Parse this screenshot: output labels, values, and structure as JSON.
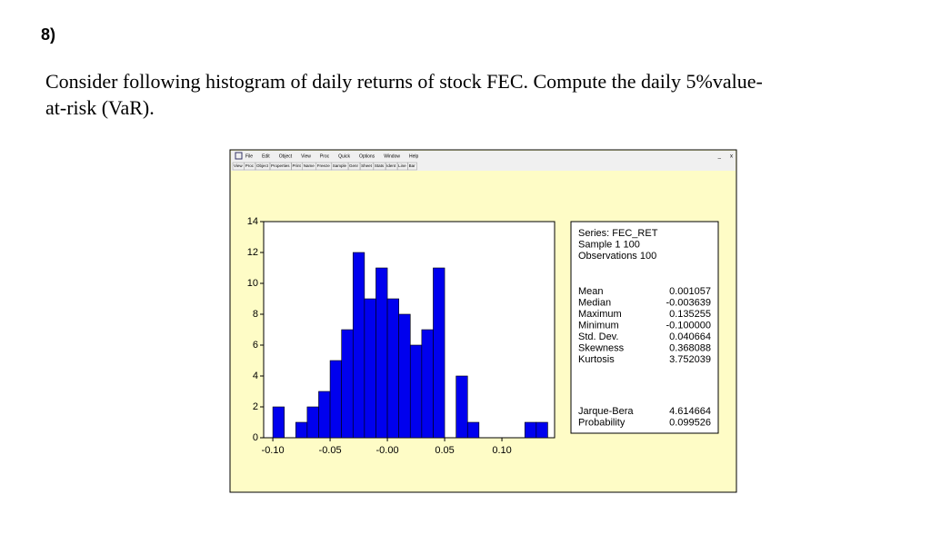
{
  "header": {
    "number": "8)"
  },
  "question": {
    "lines": [
      "Consider following histogram of daily returns of stock FEC. Compute the daily 5%value-",
      "at-risk (VaR)."
    ]
  },
  "window": {
    "menu": [
      "File",
      "Edit",
      "Object",
      "View",
      "Proc",
      "Quick",
      "Options",
      "Window",
      "Help"
    ],
    "toolbar": [
      "View",
      "Proc",
      "Object",
      "Properties",
      "Print",
      "Name",
      "Freeze",
      "Sample",
      "Genr",
      "Sheet",
      "Stats",
      "Ident",
      "Line",
      "Bar"
    ],
    "controls": "_      x"
  },
  "chart_data": {
    "type": "histogram",
    "bins": [
      -0.1,
      -0.09,
      -0.08,
      -0.07,
      -0.06,
      -0.05,
      -0.04,
      -0.03,
      -0.02,
      -0.01,
      0.0,
      0.01,
      0.02,
      0.03,
      0.04,
      0.05,
      0.06,
      0.07,
      0.08,
      0.09,
      0.1,
      0.11,
      0.12,
      0.13,
      0.14
    ],
    "values": [
      2,
      0,
      1,
      2,
      3,
      5,
      7,
      12,
      9,
      11,
      9,
      8,
      6,
      7,
      11,
      0,
      4,
      1,
      0,
      0,
      0,
      0,
      1,
      1
    ],
    "color": "#0000ee",
    "xlim": [
      -0.108,
      0.146
    ],
    "xticks": [
      {
        "value": -0.1,
        "label": "-0.10"
      },
      {
        "value": -0.05,
        "label": "-0.05"
      },
      {
        "value": 0,
        "label": "-0.00"
      },
      {
        "value": 0.05,
        "label": "0.05"
      },
      {
        "value": 0.1,
        "label": "0.10"
      }
    ],
    "ylim": [
      0,
      14
    ],
    "yticks": [
      0,
      2,
      4,
      6,
      8,
      10,
      12,
      14
    ]
  },
  "stats": {
    "header": [
      "Series: FEC_RET",
      "Sample 1 100",
      "Observations 100"
    ],
    "moments": [
      [
        "Mean",
        "0.001057"
      ],
      [
        "Median",
        "-0.003639"
      ],
      [
        "Maximum",
        "0.135255"
      ],
      [
        "Minimum",
        "-0.100000"
      ],
      [
        "Std. Dev.",
        "0.040664"
      ],
      [
        "Skewness",
        "0.368088"
      ],
      [
        "Kurtosis",
        "3.752039"
      ]
    ],
    "tests": [
      [
        "Jarque-Bera",
        "4.614664"
      ],
      [
        "Probability",
        "0.099526"
      ]
    ]
  }
}
